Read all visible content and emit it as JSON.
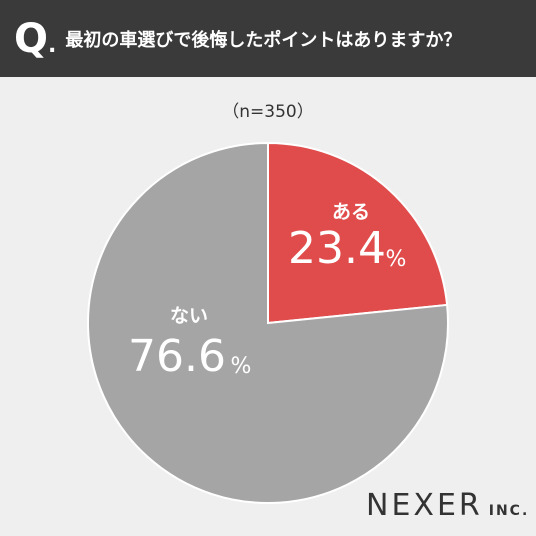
{
  "header": {
    "q_mark": "Q",
    "q_dot": ".",
    "question": "最初の車選びで後悔したポイントはありますか？"
  },
  "sample_size": "（n=350）",
  "chart_data": {
    "type": "pie",
    "title": "最初の車選びで後悔したポイントはありますか？",
    "slices": [
      {
        "label": "ある",
        "value": 23.4,
        "display": "23.4",
        "unit": "%",
        "color": "#e04b4b"
      },
      {
        "label": "ない",
        "value": 76.6,
        "display": "76.6",
        "unit": "%",
        "color": "#a5a5a5"
      }
    ],
    "start_angle_deg": 0,
    "direction": "clockwise"
  },
  "logo": {
    "main": "NEXER",
    "sub": "INC."
  }
}
